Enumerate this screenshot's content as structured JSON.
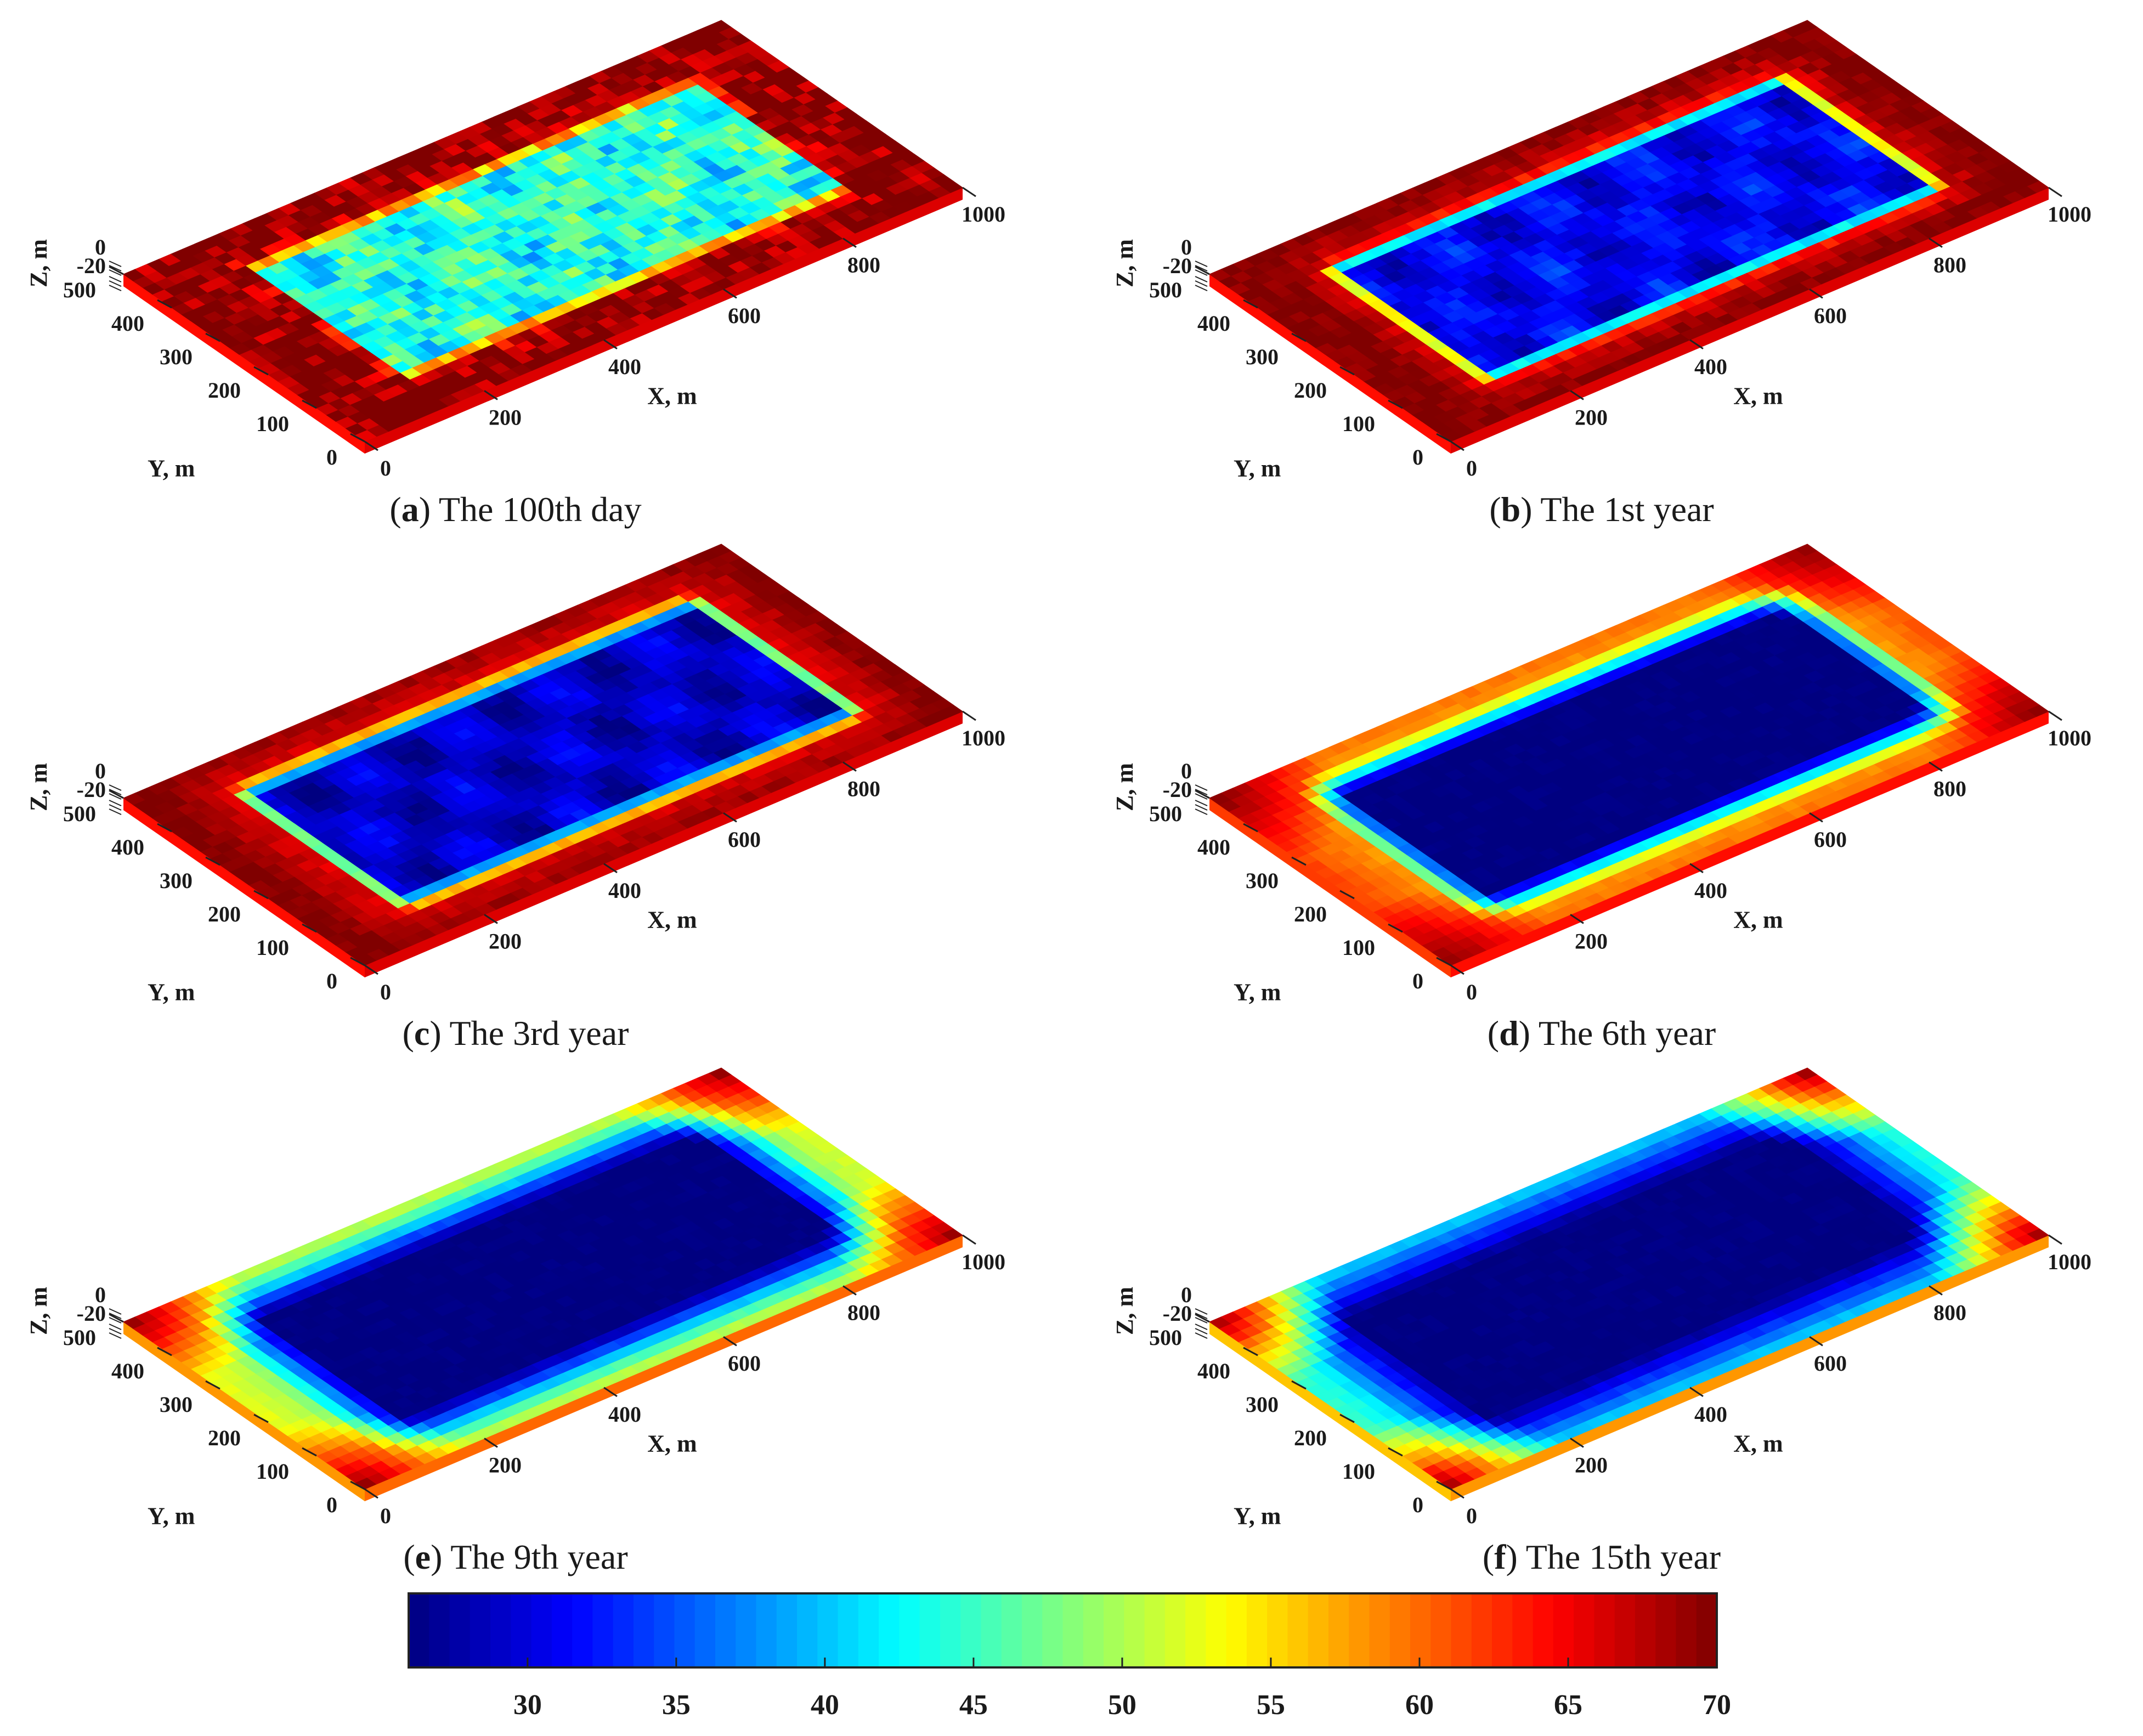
{
  "chart_data": {
    "type": "heatmap",
    "colormap": "jet",
    "colorbar": {
      "min": 26,
      "max": 70,
      "ticks": [
        30,
        35,
        40,
        45,
        50,
        55,
        60,
        65,
        70
      ]
    },
    "axes": {
      "x": {
        "label": "X, m",
        "range": [
          0,
          1000
        ],
        "ticks": [
          0,
          200,
          400,
          600,
          800,
          1000
        ]
      },
      "y": {
        "label": "Y, m",
        "range": [
          0,
          500
        ],
        "ticks": [
          0,
          100,
          200,
          300,
          400,
          500
        ]
      },
      "z": {
        "label": "Z, m",
        "range": [
          -20,
          0
        ],
        "ticks": [
          -20,
          0
        ]
      }
    },
    "injection_zone": {
      "x": [
        150,
        870
      ],
      "y": [
        100,
        400
      ]
    },
    "panels": [
      {
        "label": "a",
        "caption": "The 100th day",
        "core": 44,
        "background": 70,
        "edge": 66,
        "band": 18,
        "spread": 38,
        "noise": 9,
        "stripes": true
      },
      {
        "label": "b",
        "caption": "The 1st year",
        "core": 31,
        "background": 70,
        "edge": 66,
        "band": 32,
        "spread": 55,
        "noise": 3,
        "stripes": true
      },
      {
        "label": "c",
        "caption": "The 3rd year",
        "core": 29,
        "background": 70,
        "edge": 66,
        "band": 40,
        "spread": 80,
        "noise": 2,
        "stripes": true
      },
      {
        "label": "d",
        "caption": "The 6th year",
        "core": 26,
        "background": 68,
        "edge": 58,
        "band": 60,
        "spread": 230,
        "noise": 1,
        "stripes": false
      },
      {
        "label": "e",
        "caption": "The 9th year",
        "core": 26,
        "background": 64,
        "edge": 50,
        "band": 85,
        "spread": 330,
        "noise": 1,
        "stripes": false
      },
      {
        "label": "f",
        "caption": "The 15th year",
        "core": 26,
        "background": 62,
        "edge": 43,
        "band": 110,
        "spread": 400,
        "noise": 1,
        "stripes": false
      }
    ]
  }
}
